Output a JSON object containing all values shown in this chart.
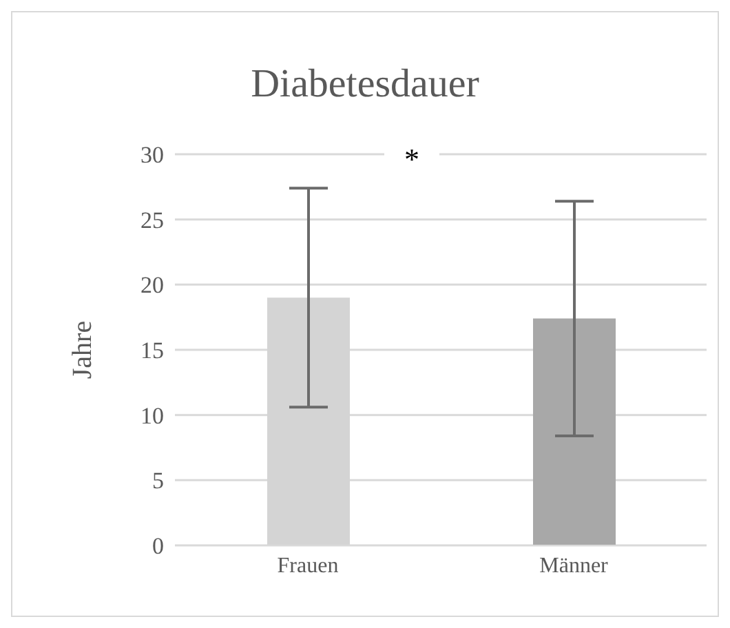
{
  "chart_data": {
    "type": "bar",
    "title": "Diabetesdauer",
    "ylabel": "Jahre",
    "categories": [
      "Frauen",
      "Männer"
    ],
    "values": [
      19.0,
      17.4
    ],
    "errors": [
      8.4,
      9.0
    ],
    "colors": [
      "#d4d4d4",
      "#a8a8a8"
    ],
    "ylim": [
      0,
      30
    ],
    "yticks": [
      0,
      5,
      10,
      15,
      20,
      25,
      30
    ],
    "grid": "y",
    "legend": false,
    "annotations": [
      "*"
    ]
  }
}
